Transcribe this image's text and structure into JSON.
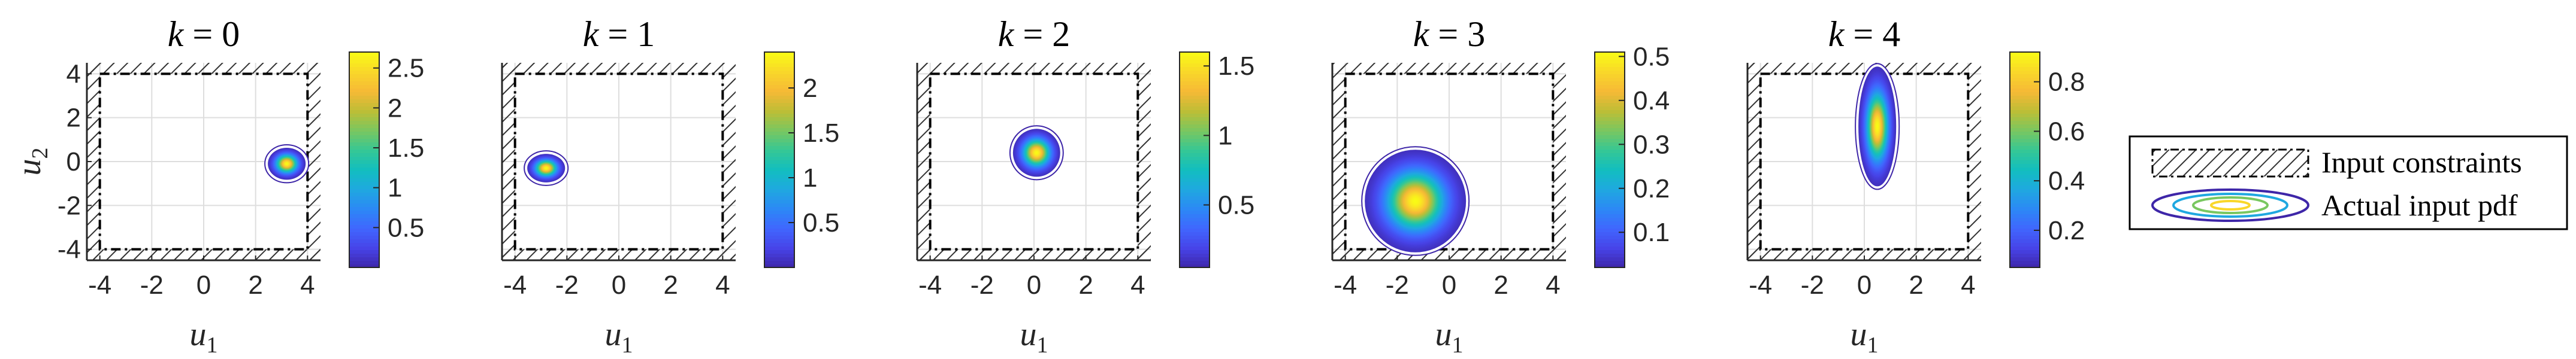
{
  "chart_data": [
    {
      "type": "heatmap",
      "title": "k = 0",
      "title_var": "k",
      "title_val": "0",
      "xlabel": "u",
      "xlabel_sub": "1",
      "ylabel": "u",
      "ylabel_sub": "2",
      "xlim": [
        -4.5,
        4.5
      ],
      "ylim": [
        -4.5,
        4.5
      ],
      "xticks": [
        "-4",
        "-2",
        "0",
        "2",
        "4"
      ],
      "yticks": [
        "4",
        "2",
        "0",
        "-2",
        "-4"
      ],
      "constraint_box": {
        "u1": [
          -4,
          4
        ],
        "u2": [
          -4,
          4
        ]
      },
      "pdf": {
        "mean": [
          3.2,
          -0.1
        ],
        "std": [
          0.28,
          0.28
        ]
      },
      "colorbar": {
        "min": 0,
        "max": 2.7,
        "ticks": [
          "2.5",
          "2",
          "1.5",
          "1",
          "0.5"
        ],
        "tick_values": [
          2.5,
          2,
          1.5,
          1,
          0.5
        ]
      }
    },
    {
      "type": "heatmap",
      "title": "k = 1",
      "title_var": "k",
      "title_val": "1",
      "xlabel": "u",
      "xlabel_sub": "1",
      "ylabel": "",
      "ylabel_sub": "",
      "xlim": [
        -4.5,
        4.5
      ],
      "ylim": [
        -4.5,
        4.5
      ],
      "xticks": [
        "-4",
        "-2",
        "0",
        "2",
        "4"
      ],
      "yticks": [],
      "constraint_box": {
        "u1": [
          -4,
          4
        ],
        "u2": [
          -4,
          4
        ]
      },
      "pdf": {
        "mean": [
          -2.8,
          -0.3
        ],
        "std": [
          0.28,
          0.25
        ]
      },
      "colorbar": {
        "min": 0,
        "max": 2.4,
        "ticks": [
          "2",
          "1.5",
          "1",
          "0.5"
        ],
        "tick_values": [
          2,
          1.5,
          1,
          0.5
        ]
      }
    },
    {
      "type": "heatmap",
      "title": "k = 2",
      "title_var": "k",
      "title_val": "2",
      "xlabel": "u",
      "xlabel_sub": "1",
      "ylabel": "",
      "ylabel_sub": "",
      "xlim": [
        -4.5,
        4.5
      ],
      "ylim": [
        -4.5,
        4.5
      ],
      "xticks": [
        "-4",
        "-2",
        "0",
        "2",
        "4"
      ],
      "yticks": [],
      "constraint_box": {
        "u1": [
          -4,
          4
        ],
        "u2": [
          -4,
          4
        ]
      },
      "pdf": {
        "mean": [
          0.1,
          0.4
        ],
        "std": [
          0.35,
          0.42
        ]
      },
      "colorbar": {
        "min": 0.05,
        "max": 1.6,
        "ticks": [
          "1.5",
          "1",
          "0.5"
        ],
        "tick_values": [
          1.5,
          1,
          0.5
        ]
      }
    },
    {
      "type": "heatmap",
      "title": "k = 3",
      "title_var": "k",
      "title_val": "3",
      "xlabel": "u",
      "xlabel_sub": "1",
      "ylabel": "",
      "ylabel_sub": "",
      "xlim": [
        -4.5,
        4.5
      ],
      "ylim": [
        -4.5,
        4.5
      ],
      "xticks": [
        "-4",
        "-2",
        "0",
        "2",
        "4"
      ],
      "yticks": [],
      "constraint_box": {
        "u1": [
          -4,
          4
        ],
        "u2": [
          -4,
          4
        ]
      },
      "pdf": {
        "mean": [
          -1.3,
          -1.8
        ],
        "std": [
          0.75,
          0.9
        ]
      },
      "colorbar": {
        "min": 0.02,
        "max": 0.51,
        "ticks": [
          "0.5",
          "0.4",
          "0.3",
          "0.2",
          "0.1"
        ],
        "tick_values": [
          0.5,
          0.4,
          0.3,
          0.2,
          0.1
        ]
      }
    },
    {
      "type": "heatmap",
      "title": "k = 4",
      "title_var": "k",
      "title_val": "4",
      "xlabel": "u",
      "xlabel_sub": "1",
      "ylabel": "",
      "ylabel_sub": "",
      "xlim": [
        -4.5,
        4.5
      ],
      "ylim": [
        -4.5,
        4.5
      ],
      "xticks": [
        "-4",
        "-2",
        "0",
        "2",
        "4"
      ],
      "yticks": [],
      "constraint_box": {
        "u1": [
          -4,
          4
        ],
        "u2": [
          -4,
          4
        ]
      },
      "pdf": {
        "mean": [
          0.5,
          1.6
        ],
        "std": [
          0.28,
          1.05
        ]
      },
      "colorbar": {
        "min": 0.05,
        "max": 0.92,
        "ticks": [
          "0.8",
          "0.6",
          "0.4",
          "0.2"
        ],
        "tick_values": [
          0.8,
          0.6,
          0.4,
          0.2
        ]
      }
    }
  ],
  "legend": {
    "placement": "right",
    "entries": [
      {
        "label": "Input constraints"
      },
      {
        "label": "Actual input pdf"
      }
    ]
  },
  "colormap": [
    "#3e26a8",
    "#4743e8",
    "#4066fe",
    "#2c88f6",
    "#1fa8e0",
    "#12bebf",
    "#35c795",
    "#79c760",
    "#bdbe36",
    "#f6b936",
    "#f9d72a",
    "#f9fb15"
  ]
}
